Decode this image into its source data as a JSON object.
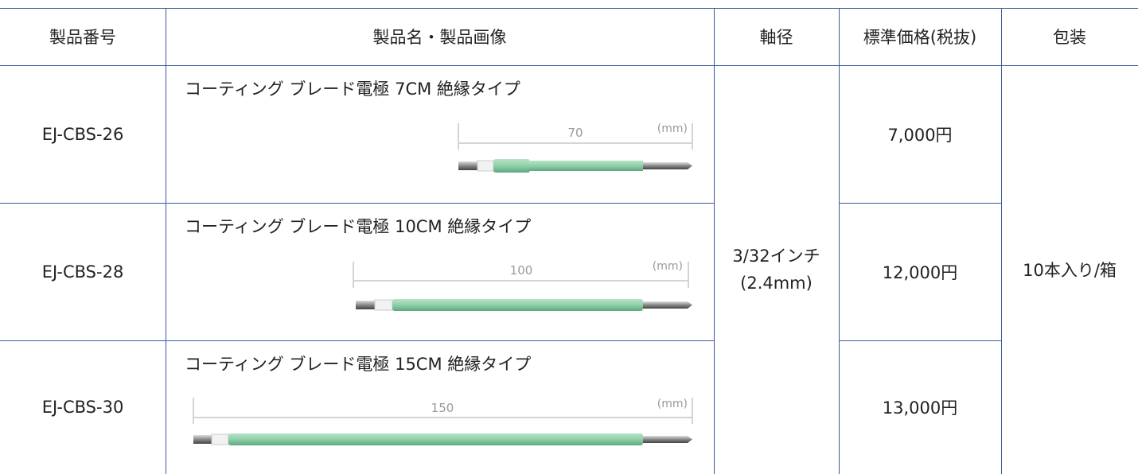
{
  "header": {
    "columns": [
      "製品番号",
      "製品名・製品画像",
      "軸径",
      "標準価格(税抜)",
      "包装"
    ]
  },
  "dimension_unit": "(mm)",
  "rows": [
    {
      "number": "EJ-CBS-26",
      "name": "コーティング ブレード電極 7CM 絶縁タイプ",
      "dimension": "70",
      "price": "7,000円"
    },
    {
      "number": "EJ-CBS-28",
      "name": "コーティング ブレード電極 10CM 絶縁タイプ",
      "dimension": "100",
      "price": "12,000円"
    },
    {
      "number": "EJ-CBS-30",
      "name": "コーティング ブレード電極 15CM 絶縁タイプ",
      "dimension": "150",
      "price": "13,000円"
    }
  ],
  "diameter": [
    "3/32インチ",
    "(2.4mm)"
  ],
  "packaging": "10本入り/箱"
}
